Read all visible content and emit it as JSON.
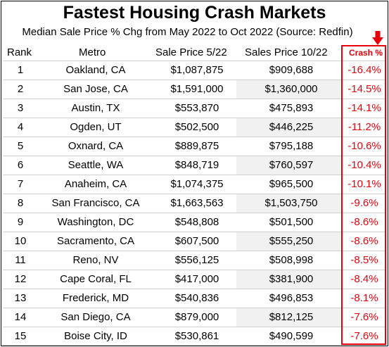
{
  "title": "Fastest Housing Crash Markets",
  "subtitle": "Median Sale Price % Chg from May 2022 to Oct 2022 (Source: Redfin)",
  "columns": {
    "rank": "Rank",
    "metro": "Metro",
    "price1": "Sale Price 5/22",
    "price2": "Sales Price 10/22",
    "crash": "Crash %"
  },
  "colors": {
    "accent_red": "#e8000b",
    "alt_cell_bg": "#f1f1f1",
    "row_divider": "#cfcfcf"
  },
  "arrow_icon": "down-arrow-icon",
  "rows": [
    {
      "rank": "1",
      "metro": "Oakland, CA",
      "price1": "$1,087,875",
      "price2": "$909,688",
      "crash": "-16.4%"
    },
    {
      "rank": "2",
      "metro": "San Jose, CA",
      "price1": "$1,591,000",
      "price2": "$1,360,000",
      "crash": "-14.5%"
    },
    {
      "rank": "3",
      "metro": "Austin, TX",
      "price1": "$553,870",
      "price2": "$475,893",
      "crash": "-14.1%"
    },
    {
      "rank": "4",
      "metro": "Ogden, UT",
      "price1": "$502,500",
      "price2": "$446,225",
      "crash": "-11.2%"
    },
    {
      "rank": "5",
      "metro": "Oxnard, CA",
      "price1": "$889,875",
      "price2": "$795,188",
      "crash": "-10.6%"
    },
    {
      "rank": "6",
      "metro": "Seattle, WA",
      "price1": "$848,719",
      "price2": "$760,597",
      "crash": "-10.4%"
    },
    {
      "rank": "7",
      "metro": "Anaheim, CA",
      "price1": "$1,074,375",
      "price2": "$965,500",
      "crash": "-10.1%"
    },
    {
      "rank": "8",
      "metro": "San Francisco, CA",
      "price1": "$1,663,563",
      "price2": "$1,503,750",
      "crash": "-9.6%"
    },
    {
      "rank": "9",
      "metro": "Washington, DC",
      "price1": "$548,808",
      "price2": "$501,500",
      "crash": "-8.6%"
    },
    {
      "rank": "10",
      "metro": "Sacramento, CA",
      "price1": "$607,500",
      "price2": "$555,250",
      "crash": "-8.6%"
    },
    {
      "rank": "11",
      "metro": "Reno, NV",
      "price1": "$556,125",
      "price2": "$508,998",
      "crash": "-8.5%"
    },
    {
      "rank": "12",
      "metro": "Cape Coral, FL",
      "price1": "$417,000",
      "price2": "$381,900",
      "crash": "-8.4%"
    },
    {
      "rank": "13",
      "metro": "Frederick, MD",
      "price1": "$540,836",
      "price2": "$496,853",
      "crash": "-8.1%"
    },
    {
      "rank": "14",
      "metro": "San Diego, CA",
      "price1": "$879,000",
      "price2": "$812,125",
      "crash": "-7.6%"
    },
    {
      "rank": "15",
      "metro": "Boise City, ID",
      "price1": "$530,861",
      "price2": "$490,599",
      "crash": "-7.6%"
    }
  ]
}
